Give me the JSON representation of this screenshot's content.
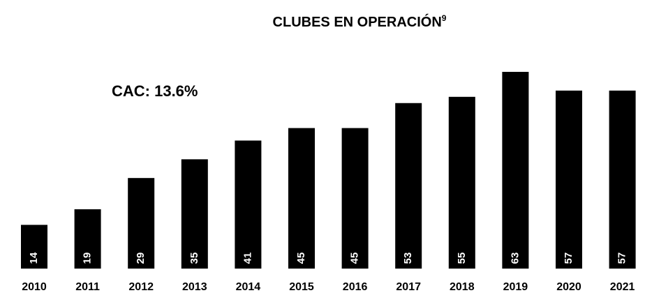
{
  "chart_data": {
    "type": "bar",
    "title": "CLUBES EN OPERACIÓN",
    "title_footnote": "9",
    "annotation": "CAC: 13.6%",
    "categories": [
      "2010",
      "2011",
      "2012",
      "2013",
      "2014",
      "2015",
      "2016",
      "2017",
      "2018",
      "2019",
      "2020",
      "2021"
    ],
    "values": [
      14,
      19,
      29,
      35,
      41,
      45,
      45,
      53,
      55,
      63,
      57,
      57
    ],
    "color": "#000000"
  }
}
